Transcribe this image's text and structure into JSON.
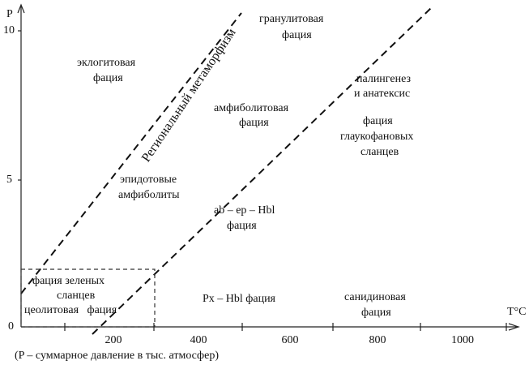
{
  "axes": {
    "y_label": "P",
    "y_ticks": [
      "10",
      "5",
      "0"
    ],
    "x_label": "T°C",
    "x_ticks": [
      "200",
      "400",
      "600",
      "800",
      "1000"
    ],
    "caption": "(P – суммарное давление в тыс. атмосфер)"
  },
  "line_label": "Региональный метаморфизм",
  "regions": [
    {
      "lines": [
        "гранулитовая",
        "фация"
      ]
    },
    {
      "lines": [
        "эклогитовая",
        "фация"
      ]
    },
    {
      "lines": [
        "палингенез",
        "и анатексис"
      ]
    },
    {
      "lines": [
        "амфиболитовая",
        "фация"
      ]
    },
    {
      "lines": [
        "фация",
        "глаукофановых",
        "сланцев"
      ]
    },
    {
      "lines": [
        "эпидотовые",
        "амфиболиты"
      ]
    },
    {
      "lines": [
        "ab – ep – Hbl",
        "фация"
      ]
    },
    {
      "lines": [
        "фация зеленых",
        "сланцев",
        "цеолитовая   фация"
      ]
    },
    {
      "lines": [
        "Px – Hbl фация"
      ]
    },
    {
      "lines": [
        "санидиновая",
        "фация"
      ]
    }
  ]
}
